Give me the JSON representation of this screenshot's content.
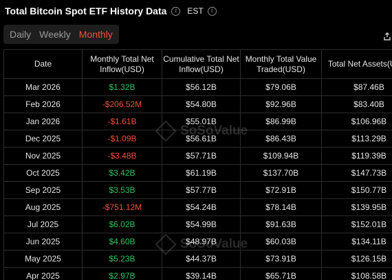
{
  "header": {
    "title": "Total Bitcoin Spot ETF History Data",
    "timezone": "EST"
  },
  "tabs": [
    {
      "label": "Daily",
      "active": false
    },
    {
      "label": "Weekly",
      "active": false
    },
    {
      "label": "Monthly",
      "active": true
    }
  ],
  "table": {
    "columns": [
      "Date",
      "Monthly Total Net Inflow(USD)",
      "Cumulative Total Net Inflow(USD)",
      "Monthly Total Value Traded(USD)",
      "Total Net Assets(USD)"
    ],
    "rows": [
      {
        "date": "Mar 2026",
        "net_inflow": "$1.32B",
        "cumulative": "$56.12B",
        "traded": "$79.06B",
        "assets": "$87.46B"
      },
      {
        "date": "Feb 2026",
        "net_inflow": "-$206.52M",
        "cumulative": "$54.80B",
        "traded": "$92.96B",
        "assets": "$83.40B"
      },
      {
        "date": "Jan 2026",
        "net_inflow": "-$1.61B",
        "cumulative": "$55.01B",
        "traded": "$86.99B",
        "assets": "$106.96B"
      },
      {
        "date": "Dec 2025",
        "net_inflow": "-$1.09B",
        "cumulative": "$56.61B",
        "traded": "$86.43B",
        "assets": "$113.29B"
      },
      {
        "date": "Nov 2025",
        "net_inflow": "-$3.48B",
        "cumulative": "$57.71B",
        "traded": "$109.94B",
        "assets": "$119.39B"
      },
      {
        "date": "Oct 2025",
        "net_inflow": "$3.42B",
        "cumulative": "$61.19B",
        "traded": "$137.70B",
        "assets": "$147.73B"
      },
      {
        "date": "Sep 2025",
        "net_inflow": "$3.53B",
        "cumulative": "$57.77B",
        "traded": "$72.91B",
        "assets": "$150.77B"
      },
      {
        "date": "Aug 2025",
        "net_inflow": "-$751.12M",
        "cumulative": "$54.24B",
        "traded": "$78.14B",
        "assets": "$139.95B"
      },
      {
        "date": "Jul 2025",
        "net_inflow": "$6.02B",
        "cumulative": "$54.99B",
        "traded": "$91.63B",
        "assets": "$152.01B"
      },
      {
        "date": "Jun 2025",
        "net_inflow": "$4.60B",
        "cumulative": "$48.97B",
        "traded": "$60.03B",
        "assets": "$134.11B"
      },
      {
        "date": "May 2025",
        "net_inflow": "$5.23B",
        "cumulative": "$44.37B",
        "traded": "$73.91B",
        "assets": "$126.15B"
      },
      {
        "date": "Apr 2025",
        "net_inflow": "$2.97B",
        "cumulative": "$39.14B",
        "traded": "$65.71B",
        "assets": "$108.58B"
      }
    ]
  },
  "watermark": {
    "text": "SoSoValue"
  },
  "icons": {
    "info": "info-icon",
    "export": "export-icon"
  },
  "colors": {
    "background": "#000000",
    "positive": "#2ec45c",
    "negative": "#f0503c",
    "active_tab": "#f0503c",
    "grid_line": "#2e2e2e"
  }
}
